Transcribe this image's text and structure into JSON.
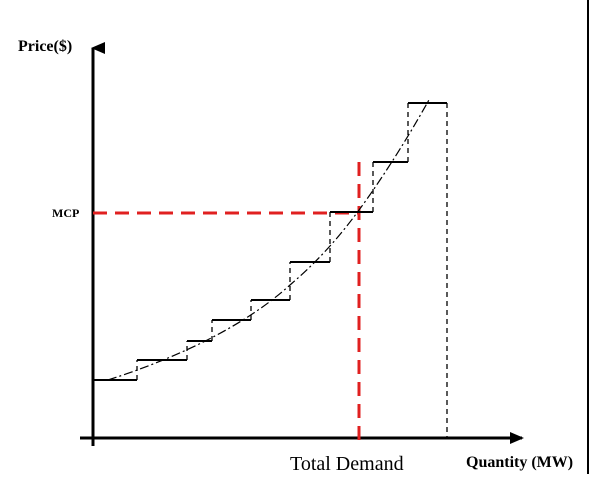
{
  "labels": {
    "y_axis": "Price($)",
    "x_axis": "Quantity (MW)",
    "mcp": "MCP",
    "total_demand": "Total Demand"
  },
  "colors": {
    "axes": "#000000",
    "supply_steps": "#000000",
    "marginal_lines": "#e02020",
    "background": "#ffffff"
  },
  "chart_data": {
    "type": "step-line",
    "supply_curve_steps": [
      {
        "q_start": 0,
        "q_end": 2,
        "price": 1.0
      },
      {
        "q_start": 2,
        "q_end": 4.5,
        "price": 2.0
      },
      {
        "q_start": 4.5,
        "q_end": 6,
        "price": 3.5
      },
      {
        "q_start": 6,
        "q_end": 8,
        "price": 5.5
      },
      {
        "q_start": 8,
        "q_end": 10,
        "price": 7.5
      },
      {
        "q_start": 10,
        "q_end": 12,
        "price": 11.0
      },
      {
        "q_start": 12,
        "q_end": 14,
        "price": 15.0
      },
      {
        "q_start": 14,
        "q_end": 15.5,
        "price": 20.0
      },
      {
        "q_start": 15.5,
        "q_end": 17.5,
        "price": 26.0
      }
    ],
    "smooth_curve": "dash-dot curve through the step corners",
    "total_demand_q": 13.5,
    "mcp_price": 15.0
  }
}
